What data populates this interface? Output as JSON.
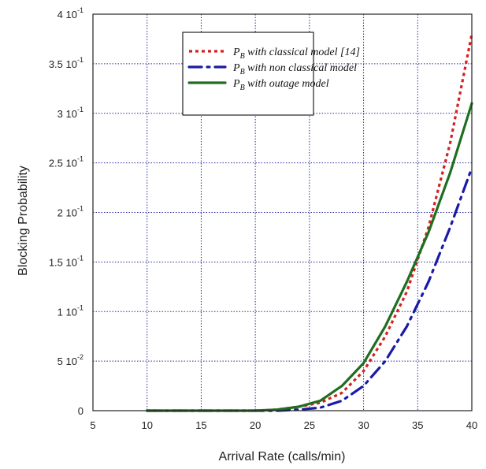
{
  "chart_data": {
    "type": "line",
    "xlabel": "Arrival Rate (calls/min)",
    "ylabel": "Blocking Probability",
    "xlim": [
      5,
      40
    ],
    "ylim": [
      0,
      0.4
    ],
    "grid": true,
    "legend_position": "top-right",
    "x_ticks": [
      "5",
      "10",
      "15",
      "20",
      "25",
      "30",
      "35",
      "40"
    ],
    "y_ticks": [
      {
        "value": 0,
        "mantissa": "0",
        "exponent": ""
      },
      {
        "value": 0.05,
        "mantissa": "5 10",
        "exponent": "-2"
      },
      {
        "value": 0.1,
        "mantissa": "1 10",
        "exponent": "-1"
      },
      {
        "value": 0.15,
        "mantissa": "1.5 10",
        "exponent": "-1"
      },
      {
        "value": 0.2,
        "mantissa": "2 10",
        "exponent": "-1"
      },
      {
        "value": 0.25,
        "mantissa": "2.5 10",
        "exponent": "-1"
      },
      {
        "value": 0.3,
        "mantissa": "3 10",
        "exponent": "-1"
      },
      {
        "value": 0.35,
        "mantissa": "3.5 10",
        "exponent": "-1"
      },
      {
        "value": 0.4,
        "mantissa": "4 10",
        "exponent": "-1"
      }
    ],
    "series": [
      {
        "name": "P_B with classical model [14]",
        "name_base": "P",
        "name_sub": "B",
        "name_rest": " with classical model [14]",
        "color": "#d42020",
        "style": "dotted",
        "x": [
          10,
          12,
          14,
          16,
          18,
          20,
          22,
          24,
          26,
          28,
          30,
          32,
          34,
          36,
          38,
          40
        ],
        "y": [
          0,
          0,
          0,
          0,
          0,
          0,
          0.001,
          0.004,
          0.008,
          0.018,
          0.04,
          0.075,
          0.12,
          0.185,
          0.27,
          0.38
        ]
      },
      {
        "name": "P_B with non classical model",
        "name_base": "P",
        "name_sub": "B",
        "name_rest": " with non classical model",
        "color": "#1a1aa8",
        "style": "dash-dot",
        "x": [
          10,
          12,
          14,
          16,
          18,
          20,
          22,
          24,
          26,
          28,
          30,
          32,
          34,
          36,
          38,
          40
        ],
        "y": [
          0,
          0,
          0,
          0,
          0,
          0,
          0,
          0.001,
          0.003,
          0.01,
          0.025,
          0.05,
          0.085,
          0.13,
          0.185,
          0.245
        ]
      },
      {
        "name": "P_B with outage model",
        "name_base": "P",
        "name_sub": "B",
        "name_rest": " with outage model",
        "color": "#1f6e1f",
        "style": "solid",
        "x": [
          10,
          12,
          14,
          16,
          18,
          20,
          22,
          24,
          26,
          28,
          30,
          32,
          34,
          36,
          38,
          40
        ],
        "y": [
          0,
          0,
          0,
          0,
          0,
          0,
          0.001,
          0.004,
          0.01,
          0.025,
          0.048,
          0.085,
          0.13,
          0.18,
          0.24,
          0.31
        ]
      }
    ]
  }
}
